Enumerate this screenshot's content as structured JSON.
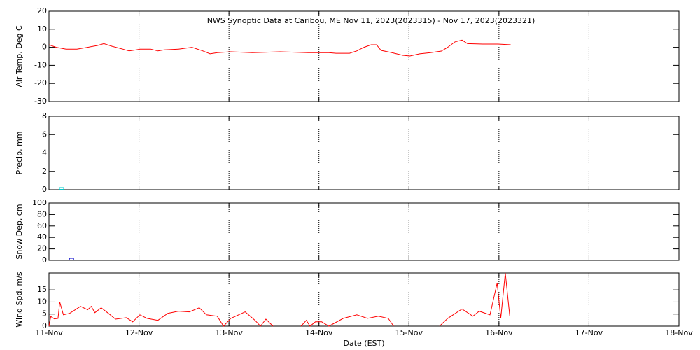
{
  "chart_data": [
    {
      "type": "line",
      "title": "NWS Synoptic Data at Caribou, ME   Nov 11, 2023(2023315) - Nov 17, 2023(2023321)",
      "ylabel": "Air Temp, Deg C",
      "xlim": [
        0,
        7
      ],
      "xticks": [
        0,
        1,
        2,
        3,
        4,
        5,
        6,
        7
      ],
      "ylim": [
        -30,
        20
      ],
      "yticks": [
        -30,
        -20,
        -10,
        0,
        10,
        20
      ],
      "grid": true,
      "x": [
        0,
        0.08,
        0.19,
        0.31,
        0.43,
        0.54,
        0.61,
        0.7,
        0.82,
        0.89,
        0.97,
        1.01,
        1.13,
        1.21,
        1.28,
        1.44,
        1.59,
        1.71,
        1.79,
        1.87,
        2.02,
        2.26,
        2.57,
        2.88,
        3.11,
        3.19,
        3.34,
        3.42,
        3.5,
        3.58,
        3.64,
        3.69,
        3.81,
        3.93,
        4.01,
        4.12,
        4.24,
        4.36,
        4.43,
        4.51,
        4.59,
        4.65,
        4.82,
        4.99,
        5.13
      ],
      "series": [
        {
          "name": "Air Temp",
          "color": "#ff0000",
          "values": [
            1.4,
            0,
            -1,
            -1,
            0,
            1,
            2,
            0.6,
            -1,
            -2,
            -1.4,
            -1,
            -1,
            -2,
            -1.4,
            -1,
            0,
            -2,
            -3.6,
            -3,
            -2.5,
            -3,
            -2.5,
            -3,
            -3,
            -3.3,
            -3.3,
            -2,
            0,
            1.4,
            1.4,
            -1.7,
            -3,
            -4.4,
            -4.8,
            -3.6,
            -3,
            -2.1,
            0,
            3,
            4,
            2,
            1.8,
            1.8,
            1.4
          ]
        }
      ]
    },
    {
      "type": "line",
      "ylabel": "Precip, mm",
      "xlim": [
        0,
        7
      ],
      "xticks": [
        0,
        1,
        2,
        3,
        4,
        5,
        6,
        7
      ],
      "ylim": [
        0,
        8
      ],
      "yticks": [
        0,
        2,
        4,
        6,
        8
      ],
      "grid": true,
      "x": [
        0.14
      ],
      "series": [
        {
          "name": "Precip",
          "color": "#00c8c8",
          "values": [
            0
          ]
        }
      ]
    },
    {
      "type": "line",
      "ylabel": "Snow Dep, cm",
      "xlim": [
        0,
        7
      ],
      "xticks": [
        0,
        1,
        2,
        3,
        4,
        5,
        6,
        7
      ],
      "ylim": [
        0,
        100
      ],
      "yticks": [
        0,
        20,
        40,
        60,
        80,
        100
      ],
      "grid": true,
      "x": [
        0.25
      ],
      "series": [
        {
          "name": "Snow Dep",
          "color": "#0000c8",
          "values": [
            0
          ]
        }
      ]
    },
    {
      "type": "line",
      "ylabel": "Wind Spd, m/s",
      "xlabel": "Date (EST)",
      "xlim": [
        0,
        7
      ],
      "xticks": [
        {
          "value": 0,
          "label": "11-Nov"
        },
        {
          "value": 1,
          "label": "12-Nov"
        },
        {
          "value": 2,
          "label": "13-Nov"
        },
        {
          "value": 3,
          "label": "14-Nov"
        },
        {
          "value": 4,
          "label": "15-Nov"
        },
        {
          "value": 5,
          "label": "16-Nov"
        },
        {
          "value": 6,
          "label": "17-Nov"
        },
        {
          "value": 7,
          "label": "18-Nov"
        }
      ],
      "ylim": [
        0,
        22
      ],
      "yticks": [
        0,
        5,
        10,
        15
      ],
      "grid": true,
      "x": [
        0,
        0.02,
        0.06,
        0.1,
        0.12,
        0.16,
        0.23,
        0.35,
        0.43,
        0.47,
        0.51,
        0.58,
        0.66,
        0.74,
        0.86,
        0.93,
        1.01,
        1.09,
        1.21,
        1.32,
        1.44,
        1.56,
        1.67,
        1.75,
        1.87,
        1.94,
        2.02,
        2.18,
        2.29,
        2.35,
        2.41,
        2.49,
        2.65,
        2.8,
        2.86,
        2.9,
        2.96,
        3.03,
        3.11,
        3.27,
        3.42,
        3.54,
        3.66,
        3.77,
        3.83,
        4.1,
        4.34,
        4.43,
        4.59,
        4.71,
        4.78,
        4.9,
        4.98,
        5.02,
        5.07,
        5.12
      ],
      "series": [
        {
          "name": "Wind Spd",
          "color": "#ff0000",
          "values": [
            0,
            4,
            3,
            3.2,
            10,
            4.7,
            5.3,
            8.2,
            6.8,
            8.2,
            5.6,
            7.6,
            5.3,
            2.9,
            3.5,
            1.8,
            4.7,
            3.2,
            2.4,
            5.3,
            6.2,
            5.9,
            7.6,
            4.7,
            4.1,
            0,
            3.2,
            5.9,
            2.4,
            0,
            2.9,
            0,
            null,
            0,
            2.4,
            0,
            1.8,
            1.8,
            0,
            3.2,
            4.7,
            3.2,
            4.1,
            3.2,
            0,
            null,
            0,
            3.2,
            7.1,
            4.1,
            6.2,
            4.7,
            17.9,
            3.2,
            22,
            4.1
          ]
        }
      ]
    }
  ]
}
